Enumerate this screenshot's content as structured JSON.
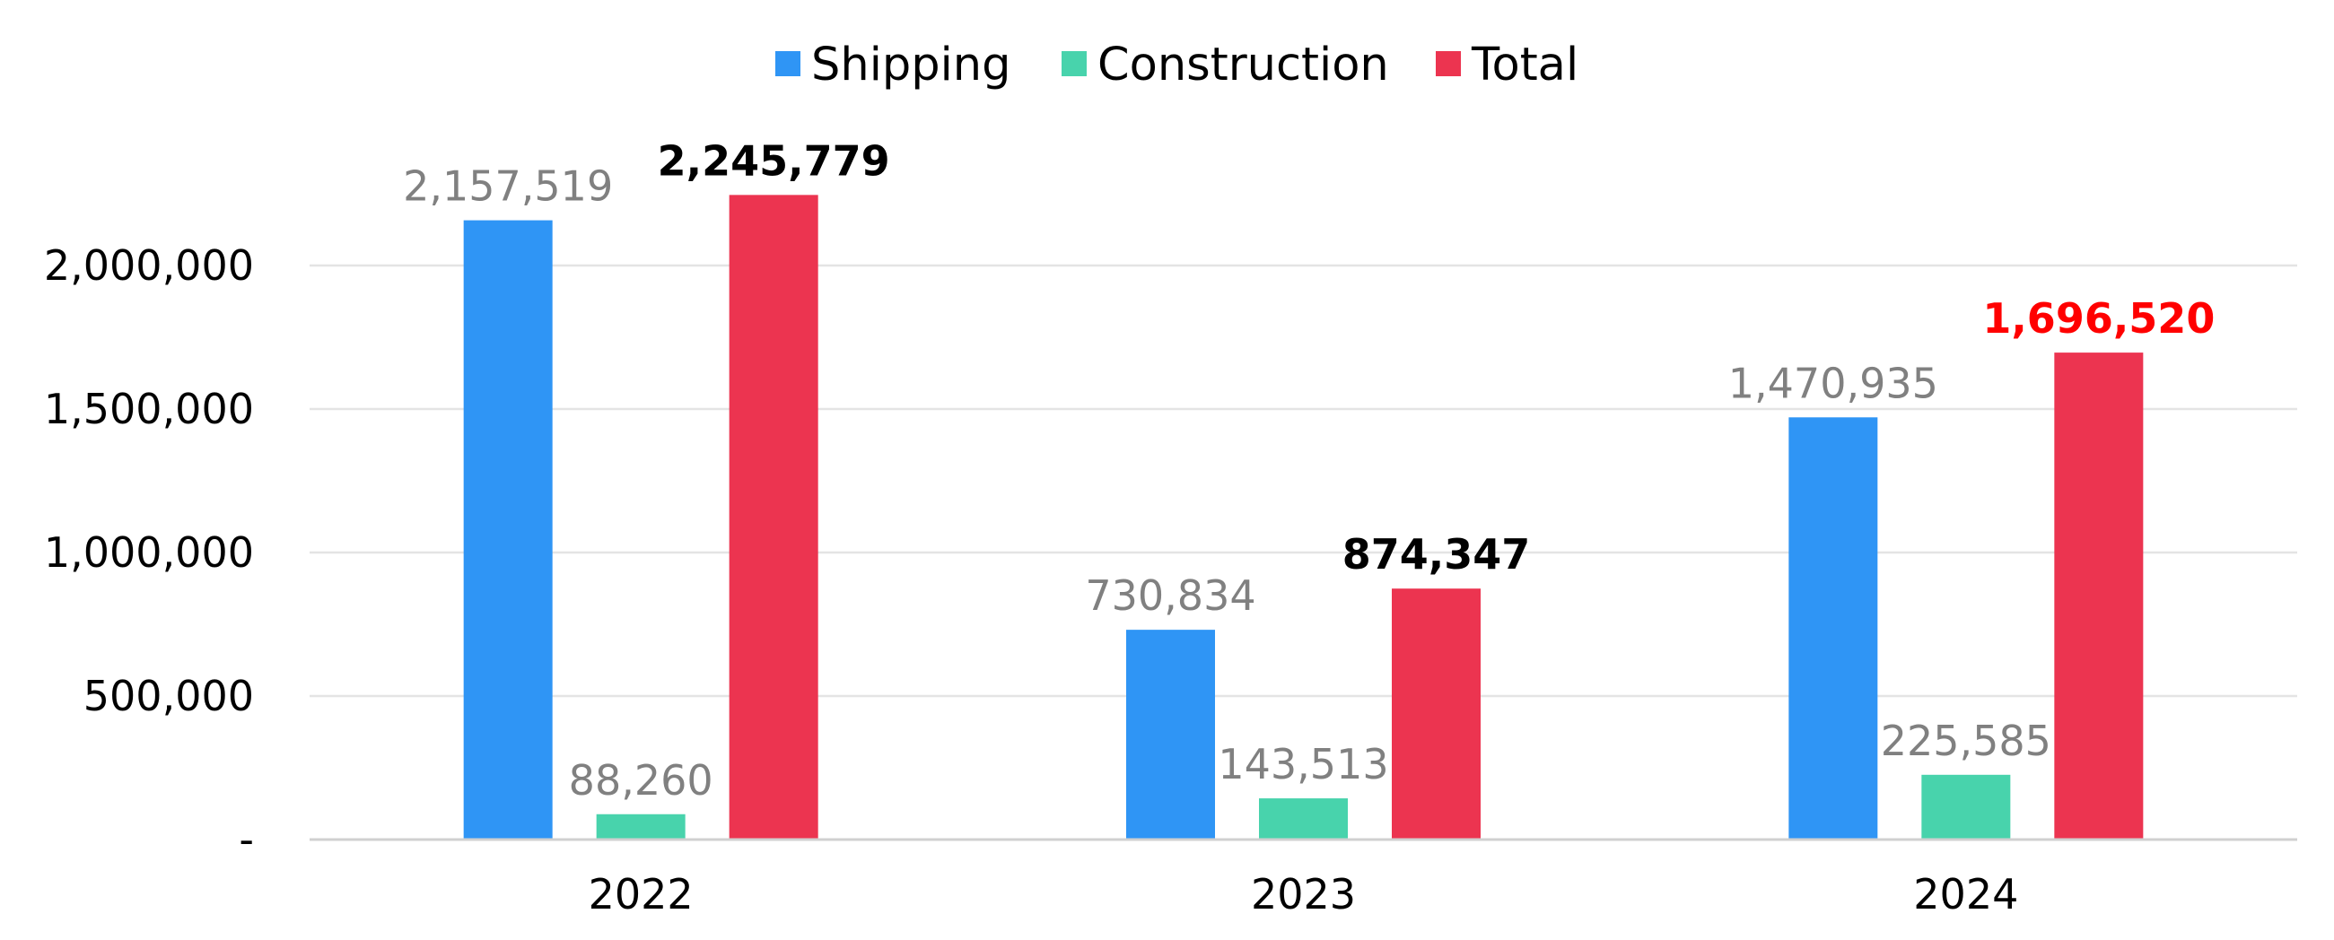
{
  "chart_data": {
    "type": "bar",
    "title": "",
    "xlabel": "",
    "ylabel": "",
    "categories": [
      "2022",
      "2023",
      "2024"
    ],
    "series": [
      {
        "name": "Shipping",
        "color": "#2F95F5",
        "values": [
          2157519,
          730834,
          1470935
        ],
        "labels": [
          "2,157,519",
          "730,834",
          "1,470,935"
        ],
        "label_colors": [
          "#808080",
          "#808080",
          "#808080"
        ],
        "label_bold": [
          false,
          false,
          false
        ]
      },
      {
        "name": "Construction",
        "color": "#48D3AC",
        "values": [
          88260,
          143513,
          225585
        ],
        "labels": [
          "88,260",
          "143,513",
          "225,585"
        ],
        "label_colors": [
          "#808080",
          "#808080",
          "#808080"
        ],
        "label_bold": [
          false,
          false,
          false
        ]
      },
      {
        "name": "Total",
        "color": "#EC3450",
        "values": [
          2245779,
          874347,
          1696520
        ],
        "labels": [
          "2,245,779",
          "874,347",
          "1,696,520"
        ],
        "label_colors": [
          "#000000",
          "#000000",
          "#FF0000"
        ],
        "label_bold": [
          true,
          true,
          true
        ]
      }
    ],
    "yticks": [
      {
        "value": 0,
        "label": "-"
      },
      {
        "value": 500000,
        "label": "500,000"
      },
      {
        "value": 1000000,
        "label": "1,000,000"
      },
      {
        "value": 1500000,
        "label": "1,500,000"
      },
      {
        "value": 2000000,
        "label": "2,000,000"
      }
    ],
    "ylim": [
      0,
      2000000
    ],
    "grid": true,
    "legend_position": "top-center"
  }
}
